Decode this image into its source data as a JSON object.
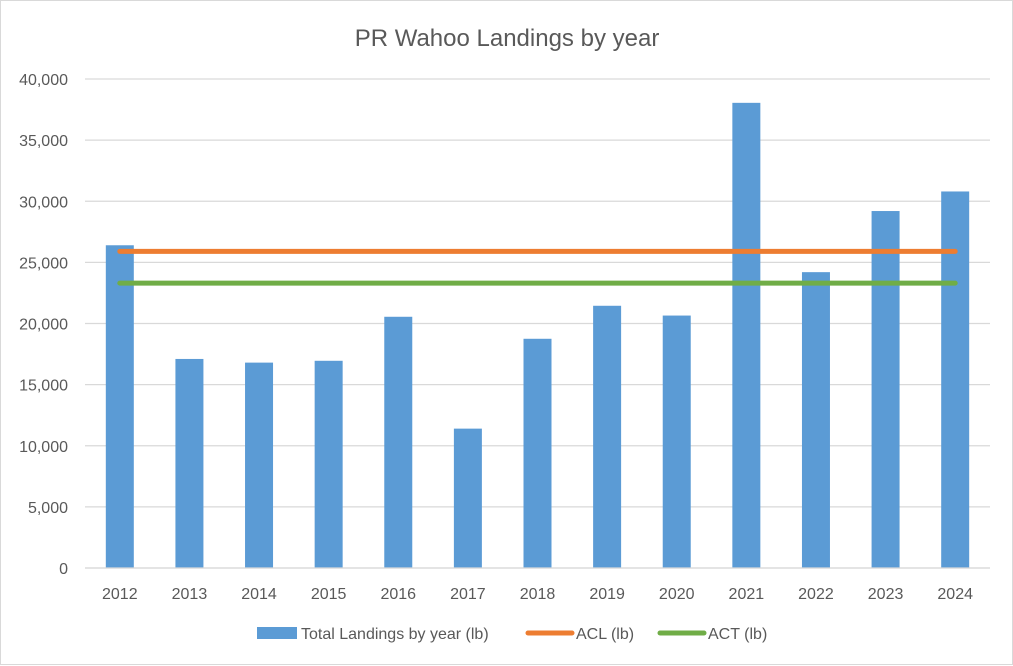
{
  "chart_data": {
    "type": "bar",
    "title": "PR Wahoo Landings by year",
    "xlabel": "",
    "ylabel": "",
    "categories": [
      "2012",
      "2013",
      "2014",
      "2015",
      "2016",
      "2017",
      "2018",
      "2019",
      "2020",
      "2021",
      "2022",
      "2023",
      "2024"
    ],
    "series": [
      {
        "name": "Total Landings by year (lb)",
        "type": "bar",
        "color": "#5b9bd5",
        "values": [
          26400,
          17100,
          16800,
          16950,
          20550,
          11400,
          18750,
          21450,
          20650,
          38050,
          24200,
          29200,
          30800
        ]
      },
      {
        "name": "ACL (lb)",
        "type": "line",
        "color": "#ed7d31",
        "values": [
          25900,
          25900,
          25900,
          25900,
          25900,
          25900,
          25900,
          25900,
          25900,
          25900,
          25900,
          25900,
          25900
        ]
      },
      {
        "name": "ACT (lb)",
        "type": "line",
        "color": "#70ad47",
        "values": [
          23300,
          23300,
          23300,
          23300,
          23300,
          23300,
          23300,
          23300,
          23300,
          23300,
          23300,
          23300,
          23300
        ]
      }
    ],
    "ylim": [
      0,
      40000
    ],
    "yticks": [
      "0",
      "5,000",
      "10,000",
      "15,000",
      "20,000",
      "25,000",
      "30,000",
      "35,000",
      "40,000"
    ],
    "ytick_values": [
      0,
      5000,
      10000,
      15000,
      20000,
      25000,
      30000,
      35000,
      40000
    ],
    "grid": true,
    "legend": "bottom"
  }
}
